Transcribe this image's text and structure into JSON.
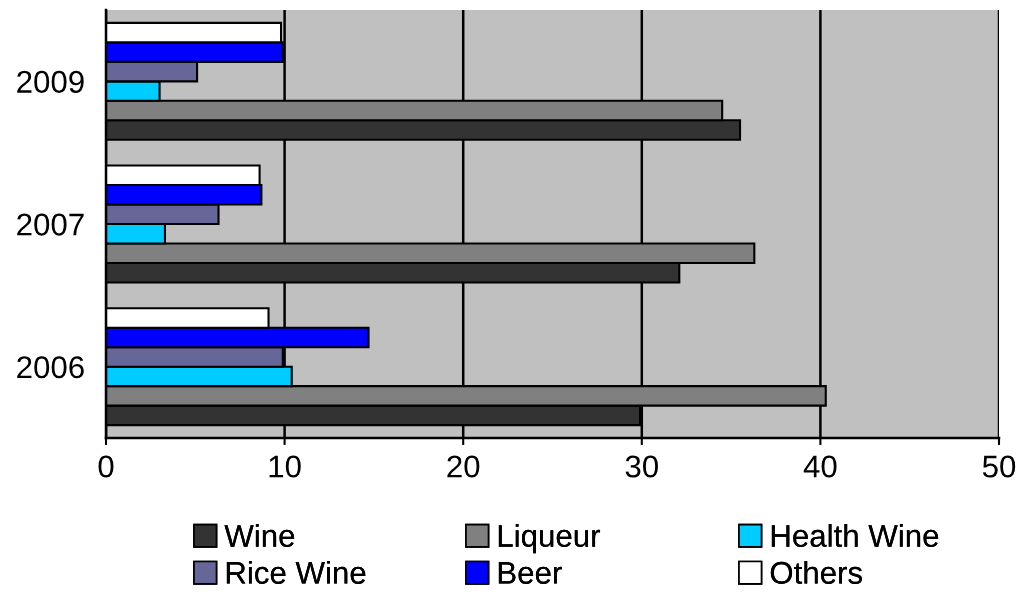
{
  "chart_data": {
    "type": "bar",
    "orientation": "horizontal",
    "categories": [
      "2009",
      "2007",
      "2006"
    ],
    "series": [
      {
        "name": "Wine",
        "color": "#333333",
        "values": [
          35.5,
          32.1,
          29.9
        ]
      },
      {
        "name": "Liqueur",
        "color": "#808080",
        "values": [
          34.5,
          36.3,
          40.3
        ]
      },
      {
        "name": "Health Wine",
        "color": "#00ccff",
        "values": [
          3.0,
          3.3,
          10.4
        ]
      },
      {
        "name": "Rice Wine",
        "color": "#666699",
        "values": [
          5.1,
          6.3,
          9.9
        ]
      },
      {
        "name": "Beer",
        "color": "#0000ff",
        "values": [
          9.9,
          8.7,
          14.7
        ]
      },
      {
        "name": "Others",
        "color": "#ffffff",
        "values": [
          9.8,
          8.6,
          9.1
        ]
      }
    ],
    "xlim": [
      0,
      50
    ],
    "xticks": [
      0,
      10,
      20,
      30,
      40,
      50
    ],
    "grid": "x",
    "legend": "bottom"
  }
}
